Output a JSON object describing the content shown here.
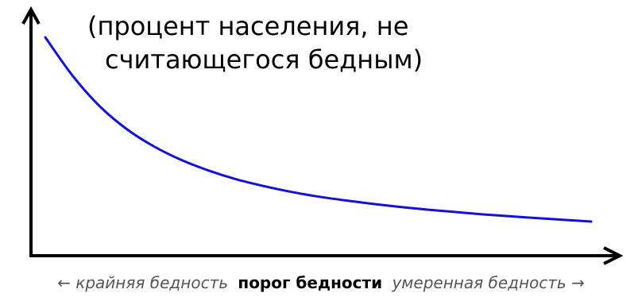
{
  "chart_data": {
    "type": "line",
    "title": "",
    "ylabel": [
      "(процент населения, не",
      "считающегося бедным)"
    ],
    "xlabel": {
      "left_arrow": "←",
      "left": "крайняя бедность",
      "middle": "порог бедности",
      "right": "умеренная бедность",
      "right_arrow": "→"
    },
    "axes": {
      "x_ticks": false,
      "y_ticks": false,
      "grid": false
    },
    "series": [
      {
        "color": "#1010e0",
        "x": [
          0.0,
          0.05,
          0.1,
          0.15,
          0.2,
          0.25,
          0.3,
          0.35,
          0.4,
          0.45,
          0.5,
          0.55,
          0.6,
          0.65,
          0.7,
          0.75,
          0.8,
          0.85,
          0.9,
          0.95,
          1.0
        ],
        "y": [
          1.0,
          0.8,
          0.64,
          0.52,
          0.43,
          0.36,
          0.305,
          0.26,
          0.225,
          0.195,
          0.17,
          0.15,
          0.132,
          0.116,
          0.102,
          0.09,
          0.078,
          0.068,
          0.058,
          0.049,
          0.04
        ]
      }
    ]
  }
}
